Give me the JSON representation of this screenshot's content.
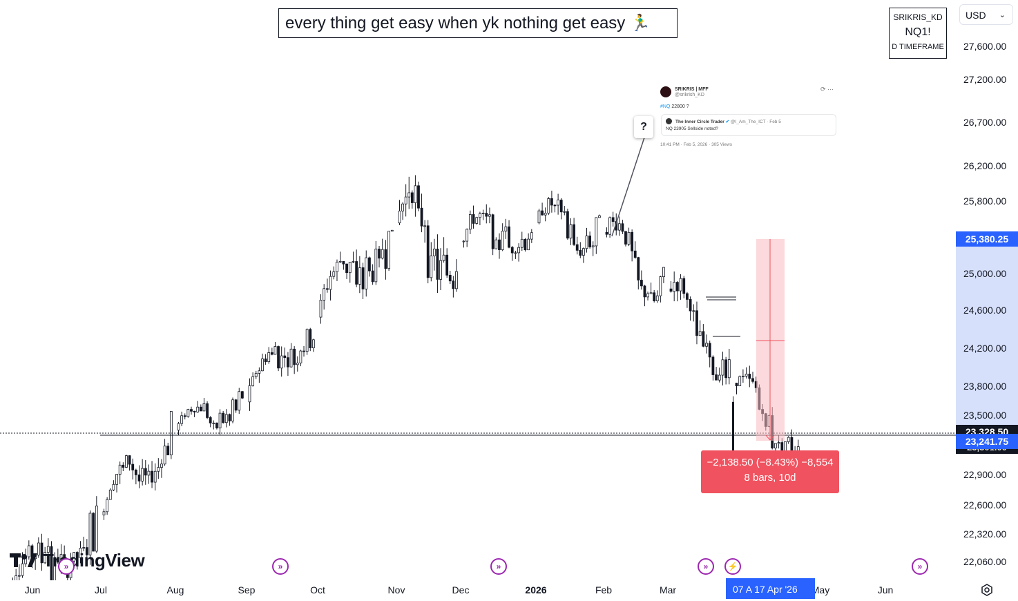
{
  "header": {
    "quote": "every thing get easy when yk nothing get easy 🏃‍♂️"
  },
  "symbol_box": {
    "user": "SRIKRIS_KD",
    "symbol": "NQ1!",
    "timeframe": "D TIMEFRAME"
  },
  "currency": {
    "label": "USD",
    "chevron_icon": "chevron-down-icon"
  },
  "price_axis": {
    "labels": [
      "27,600.00",
      "27,200.00",
      "26,700.00",
      "26,200.00",
      "25,800.00",
      "25,000.00",
      "24,600.00",
      "24,200.00",
      "23,800.00",
      "23,500.00",
      "22,900.00",
      "22,600.00",
      "22,320.00",
      "22,060.00"
    ],
    "tags": {
      "upper": "25,380.25",
      "last_price": "23,328.50",
      "current": "23,241.75",
      "hidden": "23,301.00"
    }
  },
  "time_axis": {
    "labels": [
      "Jun",
      "Jul",
      "Aug",
      "Sep",
      "Oct",
      "Nov",
      "Dec",
      "2026",
      "Feb",
      "Mar",
      "May",
      "Jun"
    ],
    "date_tag": "07 A   17 Apr '26"
  },
  "tweet": {
    "name": "SRIKRIS | MFF",
    "handle": "@srikrish_KD",
    "hashtag": "#NQ",
    "text": " 22800 ?",
    "quoted_name": "The Inner Circle Trader",
    "quoted_handle": "@I_Am_The_ICT · Feb 5",
    "quoted_text": "NQ 23905 Sellside noted?",
    "meta": "10:41 PM · Feb 5, 2026 · 305 Views",
    "menu": "⟳ ···"
  },
  "callout": {
    "text": "?"
  },
  "measure": {
    "line1": "−2,138.50 (−8.43%) −8,554",
    "line2": "8 bars, 10d",
    "color": "#f0525f",
    "zone_color": "#f7b9c0"
  },
  "branding": {
    "logo_text": "TradingView"
  },
  "icons": {
    "event": "forward-arrow-icon",
    "flash": "lightning-icon",
    "settings": "gear-icon"
  },
  "chart_data": {
    "type": "candlestick",
    "x": [
      "2025-05",
      "2025-06",
      "2025-07",
      "2025-08",
      "2025-09",
      "2025-10",
      "2025-11",
      "2025-12",
      "2026-01",
      "2026-02",
      "2026-03",
      "2026-04"
    ],
    "ohlc_monthly": [
      {
        "month": "Jun",
        "open": 21600,
        "high": 22800,
        "low": 21200,
        "close": 22600
      },
      {
        "month": "Jul",
        "open": 22600,
        "high": 23700,
        "low": 22300,
        "close": 23500
      },
      {
        "month": "Aug",
        "open": 23500,
        "high": 24000,
        "low": 23100,
        "close": 23800
      },
      {
        "month": "Sep",
        "open": 23800,
        "high": 24800,
        "low": 23500,
        "close": 24700
      },
      {
        "month": "Oct",
        "open": 24700,
        "high": 25900,
        "low": 24200,
        "close": 25700
      },
      {
        "month": "Nov",
        "open": 25700,
        "high": 26800,
        "low": 24400,
        "close": 25500
      },
      {
        "month": "Dec",
        "open": 25500,
        "high": 26300,
        "low": 25000,
        "close": 25700
      },
      {
        "month": "Jan",
        "open": 25700,
        "high": 26500,
        "low": 25200,
        "close": 25600
      },
      {
        "month": "Feb",
        "open": 25600,
        "high": 25900,
        "low": 24500,
        "close": 25000
      },
      {
        "month": "Mar",
        "open": 25000,
        "high": 25300,
        "low": 23800,
        "close": 24000
      },
      {
        "month": "Apr",
        "open": 24000,
        "high": 24400,
        "low": 23200,
        "close": 23242
      }
    ],
    "last_price": 23241.75,
    "support_level": 23301.0,
    "measure_range": {
      "top": 25380.25,
      "bottom": 23241.75,
      "change": -2138.5,
      "percent": -8.43
    },
    "ylim": [
      22000,
      27800
    ]
  }
}
